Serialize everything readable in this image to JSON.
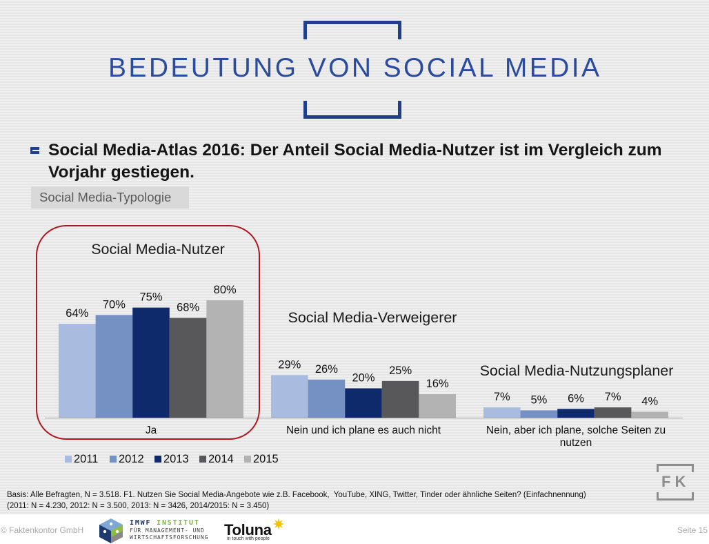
{
  "theme": {
    "title_blue": "#2b4c9d",
    "frame_blue": "#1f3e8c",
    "highlight_red": "#b0161d",
    "logo_gray": "#8e8e8e"
  },
  "slide": {
    "title": "BEDEUTUNG VON SOCIAL MEDIA",
    "headline": "Social Media-Atlas 2016: Der Anteil Social Media-Nutzer ist im Vergleich zum Vorjahr gestiegen.",
    "section_tag": "Social Media-Typologie",
    "footnote": {
      "line1": "Basis: Alle Befragten, N = 3.518. F1. Nutzen Sie Social Media-Angebote wie z.B. Facebook,  YouTube, XING, Twitter, Tinder oder ähnliche Seiten? (Einfachnennung)",
      "line2": "(2011: N = 4.230, 2012: N = 3.500, 2013: N = 3426, 2014/2015: N = 3.450)"
    }
  },
  "logos": {
    "fk": "FK"
  },
  "footer": {
    "copyright": "© Faktenkontor GmbH",
    "page": "Seite 15",
    "imwf": {
      "name": "IMWF",
      "line1_suffix": "INSTITUT",
      "line2": "FÜR MANAGEMENT- UND",
      "line3": "WIRTSCHAFTSFORSCHUNG"
    },
    "toluna": {
      "name": "Toluna",
      "tagline": "in touch with people"
    }
  },
  "chart_data": {
    "type": "bar",
    "categories": [
      "Ja",
      "Nein und ich plane es auch nicht",
      "Nein, aber ich plane, solche Seiten zu nutzen"
    ],
    "group_titles": [
      "Social Media-Nutzer",
      "Social Media-Verweigerer",
      "Social Media-Nutzungsplaner"
    ],
    "unit": "%",
    "series": [
      {
        "name": "2011",
        "color": "#a9bbdf",
        "values": [
          64,
          29,
          7
        ]
      },
      {
        "name": "2012",
        "color": "#7590c2",
        "values": [
          70,
          26,
          5
        ]
      },
      {
        "name": "2013",
        "color": "#0f2a6b",
        "values": [
          75,
          20,
          6
        ]
      },
      {
        "name": "2014",
        "color": "#58585a",
        "values": [
          68,
          25,
          7
        ]
      },
      {
        "name": "2015",
        "color": "#b3b3b3",
        "values": [
          80,
          16,
          4
        ]
      }
    ],
    "data_labels": true,
    "grid": false,
    "y_axis_visible": false,
    "legend_position": "bottom-left",
    "highlighted_category_index": 0
  }
}
